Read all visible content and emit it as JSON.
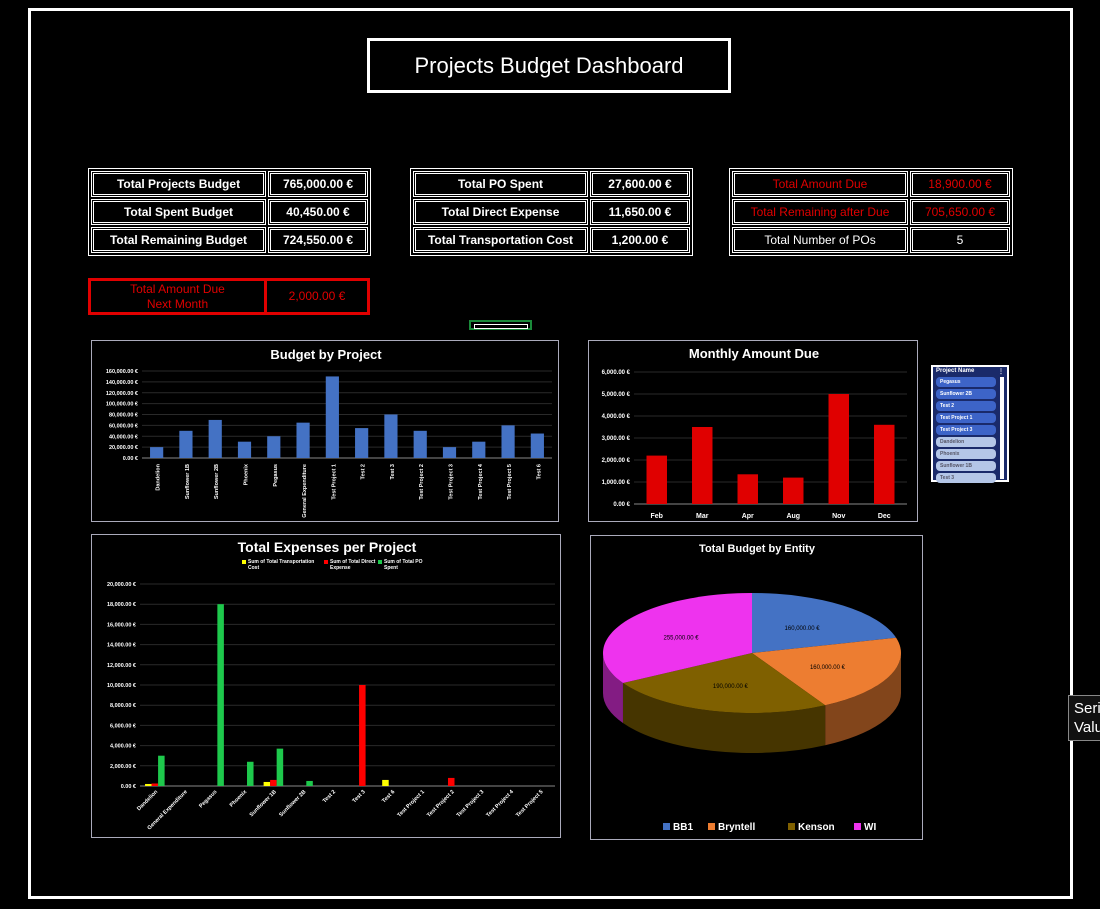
{
  "title": "Projects Budget Dashboard",
  "kpi1": [
    {
      "label": "Total Projects Budget",
      "value": "765,000.00 €"
    },
    {
      "label": "Total Spent Budget",
      "value": "40,450.00 €"
    },
    {
      "label": "Total Remaining Budget",
      "value": "724,550.00 €"
    }
  ],
  "kpi2": [
    {
      "label": "Total PO Spent",
      "value": "27,600.00 €"
    },
    {
      "label": "Total Direct Expense",
      "value": "11,650.00 €"
    },
    {
      "label": "Total Transportation Cost",
      "value": "1,200.00 €"
    }
  ],
  "kpi3": [
    {
      "label": "Total Amount Due",
      "value": "18,900.00 €"
    },
    {
      "label": "Total Remaining after Due",
      "value": "705,650.00 €"
    },
    {
      "label": "Total Number of POs",
      "value": "5"
    }
  ],
  "next_month": {
    "label_line1": "Total Amount Due",
    "label_line2": "Next Month",
    "value": "2,000.00 €"
  },
  "slicer": {
    "header": "Project Name",
    "items": [
      {
        "label": "Pegasus",
        "selected": true
      },
      {
        "label": "Sunflower 2B",
        "selected": true
      },
      {
        "label": "Test 2",
        "selected": true
      },
      {
        "label": "Test Project 1",
        "selected": true
      },
      {
        "label": "Test Project 3",
        "selected": true
      },
      {
        "label": "Dandelion",
        "selected": false
      },
      {
        "label": "Phoenix",
        "selected": false
      },
      {
        "label": "Sunflower 1B",
        "selected": false
      },
      {
        "label": "Test 3",
        "selected": false
      }
    ]
  },
  "tooltip": {
    "line1": "Seri",
    "line2": "Valu"
  },
  "chart_data": [
    {
      "type": "bar",
      "title": "Budget by Project",
      "color": "#4472c4",
      "ylim": [
        0,
        160000
      ],
      "yticks": [
        "0.00 €",
        "20,000.00 €",
        "40,000.00 €",
        "60,000.00 €",
        "80,000.00 €",
        "100,000.00 €",
        "120,000.00 €",
        "140,000.00 €",
        "160,000.00 €"
      ],
      "grid": true,
      "categories": [
        "Dandelion",
        "Sunflower 1B",
        "Sunflower 2B",
        "Phoenix",
        "Pegasus",
        "General Expenditure",
        "Test Project 1",
        "Test 2",
        "Test 3",
        "Test Project 2",
        "Test Project 3",
        "Test Project 4",
        "Test Project 5",
        "Test 6"
      ],
      "values": [
        20000,
        50000,
        70000,
        30000,
        40000,
        65000,
        150000,
        55000,
        80000,
        50000,
        20000,
        30000,
        60000,
        45000
      ]
    },
    {
      "type": "bar",
      "title": "Monthly Amount Due",
      "color": "#e00000",
      "ylim": [
        0,
        6000
      ],
      "yticks": [
        "0.00 €",
        "1,000.00 €",
        "2,000.00 €",
        "3,000.00 €",
        "4,000.00 €",
        "5,000.00 €",
        "6,000.00 €"
      ],
      "grid": true,
      "categories": [
        "Feb",
        "Mar",
        "Apr",
        "Aug",
        "Nov",
        "Dec"
      ],
      "values": [
        2200,
        3500,
        1350,
        1200,
        5000,
        3600
      ]
    },
    {
      "type": "bar",
      "title": "Total Expenses per Project",
      "ylim": [
        0,
        20000
      ],
      "yticks": [
        "0.00 €",
        "2,000.00 €",
        "4,000.00 €",
        "6,000.00 €",
        "8,000.00 €",
        "10,000.00 €",
        "12,000.00 €",
        "14,000.00 €",
        "16,000.00 €",
        "18,000.00 €",
        "20,000.00 €"
      ],
      "grid": true,
      "legend": "top",
      "categories": [
        "Dandelion",
        "General Expenditure",
        "Pegasus",
        "Phoenix",
        "Sunflower 1B",
        "Sunflower 2B",
        "Test 2",
        "Test 3",
        "Test 6",
        "Test Project 1",
        "Test Project 2",
        "Test Project 3",
        "Test Project 4",
        "Test Project 5"
      ],
      "series": [
        {
          "name": "Sum of Total Transportation Cost",
          "color": "#ffff00",
          "values": [
            200,
            0,
            0,
            0,
            400,
            0,
            0,
            0,
            600,
            0,
            0,
            0,
            0,
            0
          ]
        },
        {
          "name": "Sum of Total Direct Expense",
          "color": "#ff0000",
          "values": [
            250,
            0,
            0,
            0,
            600,
            0,
            0,
            10000,
            0,
            0,
            800,
            0,
            0,
            0
          ]
        },
        {
          "name": "Sum of Total PO Spent",
          "color": "#1ec94c",
          "values": [
            3000,
            0,
            18000,
            2400,
            3700,
            500,
            0,
            0,
            0,
            0,
            0,
            0,
            0,
            0
          ]
        }
      ]
    },
    {
      "type": "pie",
      "title": "Total Budget by Entity",
      "legend": "bottom",
      "slices": [
        {
          "name": "BB1",
          "value": 160000,
          "label": "160,000.00 €",
          "color": "#4472c4"
        },
        {
          "name": "Bryntell",
          "value": 160000,
          "label": "160,000.00 €",
          "color": "#ed7d31"
        },
        {
          "name": "Kenson",
          "value": 190000,
          "label": "190,000.00 €",
          "color": "#7f6000"
        },
        {
          "name": "WI",
          "value": 255000,
          "label": "255,000.00 €",
          "color": "#ee33ee"
        }
      ]
    }
  ]
}
